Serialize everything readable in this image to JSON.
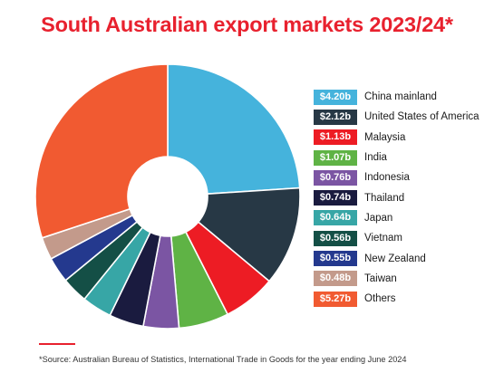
{
  "colors": {
    "accent": "#e8212e",
    "china": "#45b3dc",
    "usa": "#273845",
    "malaysia": "#ed1c24",
    "india": "#5fb345",
    "indonesia": "#7b55a3",
    "thailand": "#1a1b3f",
    "japan": "#37a6a6",
    "vietnam": "#144f46",
    "new_zealand": "#24398e",
    "taiwan": "#c39a8b",
    "others": "#f15a31"
  },
  "source_note": "*Source: Australian Bureau of Statistics, International Trade in Goods for the year ending June 2024",
  "chart_data": {
    "type": "pie",
    "title": "South Australian export markets 2023/24*",
    "legend_position": "right",
    "unit": "$ billion",
    "slices": [
      {
        "name": "China mainland",
        "value": 4.2,
        "label": "$4.20b",
        "color": "#45b3dc"
      },
      {
        "name": "United States of America",
        "value": 2.12,
        "label": "$2.12b",
        "color": "#273845"
      },
      {
        "name": "Malaysia",
        "value": 1.13,
        "label": "$1.13b",
        "color": "#ed1c24"
      },
      {
        "name": "India",
        "value": 1.07,
        "label": "$1.07b",
        "color": "#5fb345"
      },
      {
        "name": "Indonesia",
        "value": 0.76,
        "label": "$0.76b",
        "color": "#7b55a3"
      },
      {
        "name": "Thailand",
        "value": 0.74,
        "label": "$0.74b",
        "color": "#1a1b3f"
      },
      {
        "name": "Japan",
        "value": 0.64,
        "label": "$0.64b",
        "color": "#37a6a6"
      },
      {
        "name": "Vietnam",
        "value": 0.56,
        "label": "$0.56b",
        "color": "#144f46"
      },
      {
        "name": "New Zealand",
        "value": 0.55,
        "label": "$0.55b",
        "color": "#24398e"
      },
      {
        "name": "Taiwan",
        "value": 0.48,
        "label": "$0.48b",
        "color": "#c39a8b"
      },
      {
        "name": "Others",
        "value": 5.27,
        "label": "$5.27b",
        "color": "#f15a31"
      }
    ]
  }
}
